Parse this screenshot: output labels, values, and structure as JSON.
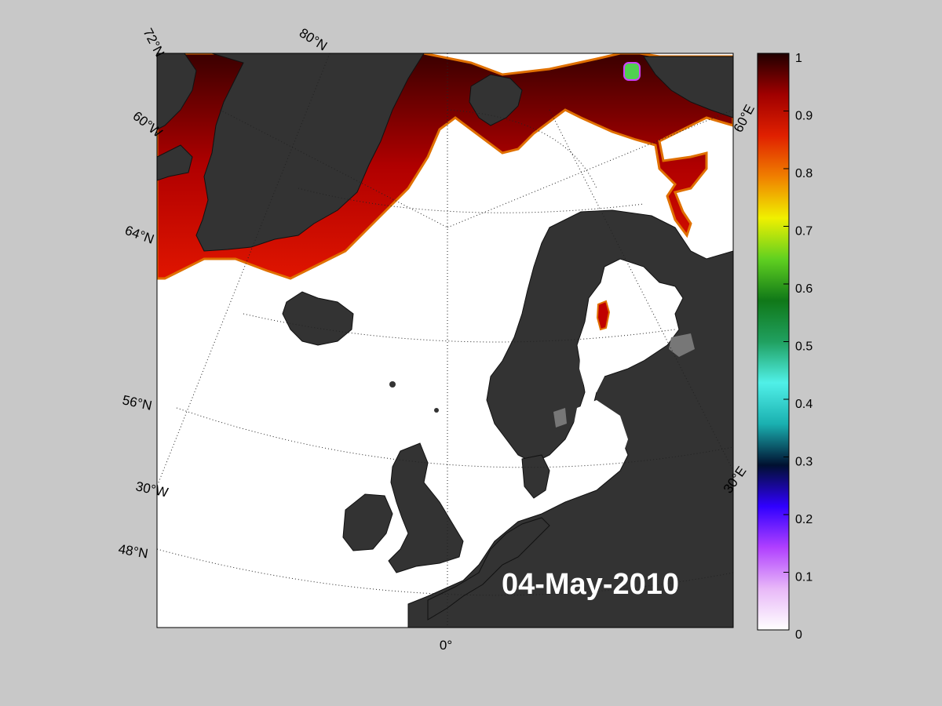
{
  "map": {
    "date_label": "04-May-2010",
    "colors": {
      "background": "#c8c8c8",
      "ocean": "#ffffff",
      "land": "#333333",
      "land_edge": "#111111",
      "lake": "#7a7a7a"
    },
    "grid_labels": {
      "lat_72": "72°N",
      "lat_80": "80°N",
      "lat_64": "64°N",
      "lat_56": "56°N",
      "lat_48": "48°N",
      "lon_60w": "60°W",
      "lon_30w": "30°W",
      "lon_0": "0°",
      "lon_30e": "30°E",
      "lon_60e": "60°E"
    }
  },
  "colorbar": {
    "ticks": [
      "1",
      "0.9",
      "0.8",
      "0.7",
      "0.6",
      "0.5",
      "0.4",
      "0.3",
      "0.2",
      "0.1",
      "0"
    ],
    "stops": [
      "#ffffff",
      "#e8b8f8",
      "#b040ff",
      "#3000ff",
      "#001030",
      "#1ab0b0",
      "#50f0e8",
      "#20a060",
      "#107818",
      "#60d020",
      "#f0f000",
      "#f08000",
      "#e02000",
      "#a00000",
      "#200000"
    ]
  }
}
